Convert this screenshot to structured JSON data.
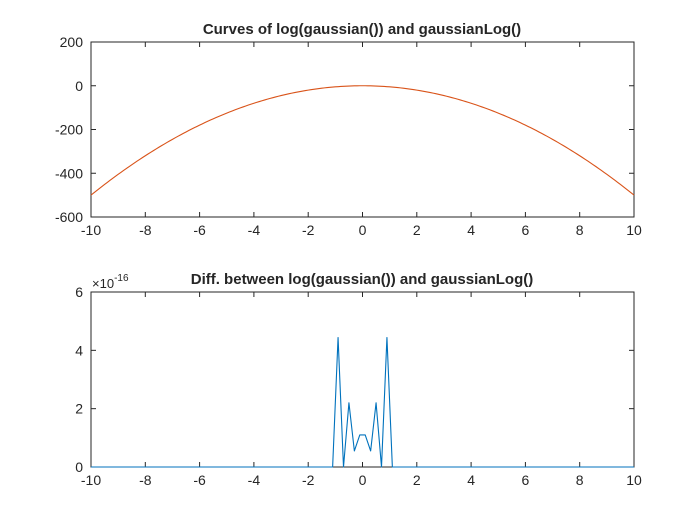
{
  "chart_data": [
    {
      "type": "line",
      "title": "Curves of log(gaussian()) and gaussianLog()",
      "xlabel": "",
      "ylabel": "",
      "xlim": [
        -10,
        10
      ],
      "ylim": [
        -600,
        200
      ],
      "xticks": [
        "-10",
        "-8",
        "-6",
        "-4",
        "-2",
        "0",
        "2",
        "4",
        "6",
        "8",
        "10"
      ],
      "yticks": [
        "200",
        "0",
        "-200",
        "-400",
        "-600"
      ],
      "grid": false,
      "series": [
        {
          "color": "#D95319",
          "formula_points": "y = -5x^2",
          "x": [
            -10,
            -9,
            -8,
            -7,
            -6,
            -5,
            -4,
            -3,
            -2,
            -1,
            0,
            1,
            2,
            3,
            4,
            5,
            6,
            7,
            8,
            9,
            10
          ],
          "y": [
            -500,
            -405,
            -320,
            -245,
            -180,
            -125,
            -80,
            -45,
            -20,
            -5,
            0,
            -5,
            -20,
            -45,
            -80,
            -125,
            -180,
            -245,
            -320,
            -405,
            -500
          ]
        }
      ]
    },
    {
      "type": "line",
      "title": "Diff. between log(gaussian()) and gaussianLog()",
      "exponent_base": "×10",
      "exponent_power": "-16",
      "xlabel": "",
      "ylabel": "",
      "xlim": [
        -10,
        10
      ],
      "ylim": [
        0,
        6
      ],
      "xticks": [
        "-10",
        "-8",
        "-6",
        "-4",
        "-2",
        "0",
        "2",
        "4",
        "6",
        "8",
        "10"
      ],
      "yticks": [
        "6",
        "4",
        "2",
        "0"
      ],
      "grid": false,
      "series": [
        {
          "color": "#0072BD",
          "x": [
            -10,
            -1.1,
            -0.9,
            -0.7,
            -0.5,
            -0.3,
            -0.1,
            0.1,
            0.3,
            0.5,
            0.7,
            0.9,
            1.1,
            10
          ],
          "y": [
            0,
            0,
            4.44,
            0,
            2.2,
            0.55,
            1.1,
            1.1,
            0.55,
            2.2,
            0,
            4.44,
            0,
            0
          ]
        }
      ]
    }
  ]
}
